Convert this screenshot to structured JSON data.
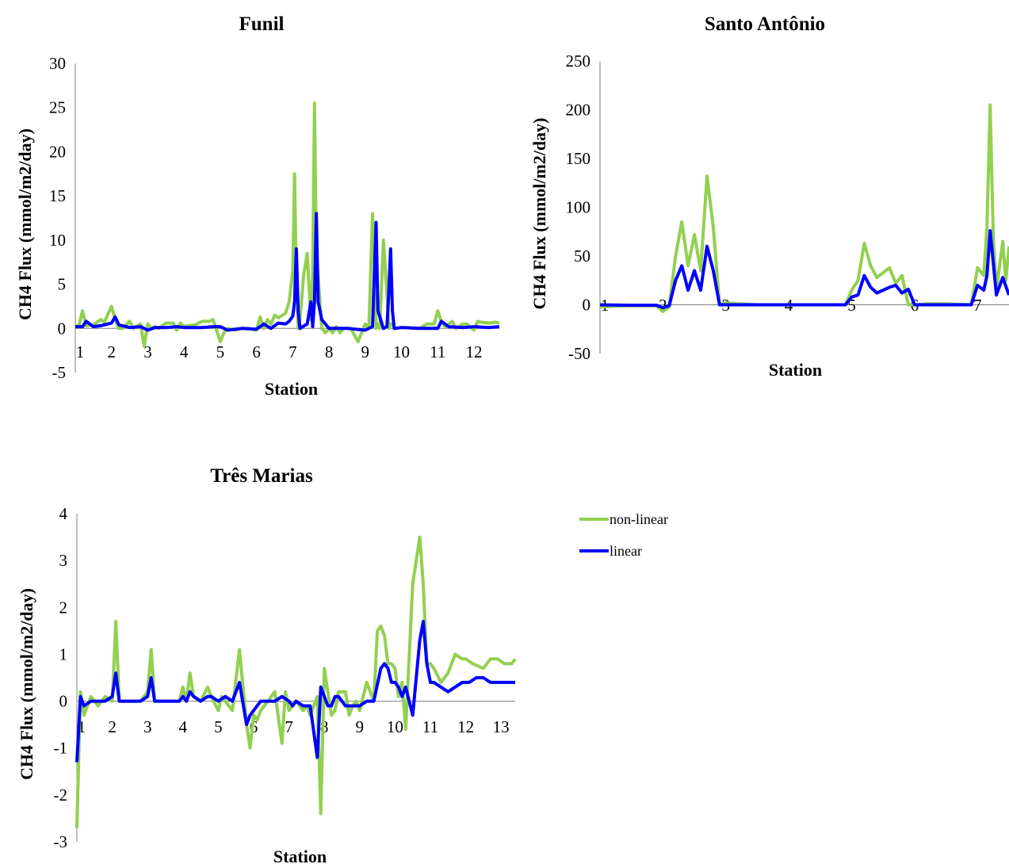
{
  "legend": [
    {
      "label": "non-linear",
      "color": "#92d050"
    },
    {
      "label": "linear",
      "color": "#0000ff"
    }
  ],
  "chart_data": [
    {
      "id": "funil",
      "type": "line",
      "title": "Funil",
      "xlabel": "Station",
      "ylabel": "CH4 Flux (mmol/m2/day)",
      "ylim": [
        -5,
        30
      ],
      "yticks": [
        -5,
        0,
        5,
        10,
        15,
        20,
        25,
        30
      ],
      "xlim": [
        1,
        12.7
      ],
      "xticks": [
        "1",
        "2",
        "3",
        "4",
        "5",
        "6",
        "7",
        "8",
        "9",
        "10",
        "11",
        "12"
      ],
      "series": [
        {
          "name": "non-linear",
          "color": "#92d050",
          "x": [
            1,
            1.1,
            1.2,
            1.3,
            1.5,
            1.7,
            1.8,
            2,
            2.1,
            2.2,
            2.3,
            2.5,
            2.6,
            2.8,
            2.9,
            3,
            3.1,
            3.2,
            3.3,
            3.5,
            3.7,
            3.8,
            3.9,
            4,
            4.1,
            4.3,
            4.5,
            4.7,
            4.8,
            5,
            5.05,
            5.1,
            5.2,
            5.4,
            5.6,
            5.8,
            6,
            6.1,
            6.2,
            6.3,
            6.4,
            6.5,
            6.6,
            6.8,
            6.9,
            7,
            7.05,
            7.1,
            7.15,
            7.2,
            7.3,
            7.4,
            7.5,
            7.55,
            7.6,
            7.65,
            7.7,
            7.8,
            7.9,
            8,
            8.1,
            8.2,
            8.3,
            8.4,
            8.5,
            8.6,
            8.8,
            9,
            9.1,
            9.2,
            9.25,
            9.3,
            9.35,
            9.4,
            9.5,
            9.6,
            9.65,
            9.7,
            9.75,
            9.8,
            9.9,
            10,
            10.1,
            10.2,
            10.3,
            10.5,
            10.7,
            10.9,
            11,
            11.1,
            11.2,
            11.4,
            11.5,
            11.7,
            11.8,
            12,
            12.1,
            12.2,
            12.4,
            12.6,
            12.7
          ],
          "y": [
            0.3,
            0.3,
            2,
            0.3,
            0.4,
            1,
            0.7,
            2.5,
            1,
            0,
            0,
            0.8,
            0,
            0.5,
            -2,
            0.5,
            0,
            0.2,
            0,
            0.6,
            0.6,
            -0.2,
            0.6,
            0.2,
            0.3,
            0.4,
            0.8,
            0.8,
            1,
            -1.5,
            -1,
            -0.5,
            0,
            -0.2,
            0,
            0,
            -0.2,
            1.3,
            0,
            1,
            0.5,
            1.5,
            1.2,
            1.7,
            3,
            6.5,
            17.5,
            5,
            0,
            1,
            6,
            8.5,
            1,
            6,
            25.5,
            8,
            6,
            0,
            -0.5,
            0,
            -0.5,
            0.2,
            -0.5,
            0,
            0,
            0,
            -1.5,
            0.5,
            0,
            13,
            8,
            0,
            0.5,
            0,
            10,
            4,
            0,
            0.5,
            0.5,
            0,
            0,
            0.1,
            0.1,
            0.1,
            0,
            0,
            0.5,
            0.5,
            2,
            0.8,
            0.2,
            0.8,
            0,
            0.5,
            0.5,
            -0.2,
            0.8,
            0.7,
            0.6,
            0.7,
            0.6
          ]
        },
        {
          "name": "linear",
          "color": "#0000ff",
          "x": [
            1,
            1.2,
            1.3,
            1.5,
            1.7,
            1.8,
            2,
            2.1,
            2.2,
            2.5,
            2.8,
            3,
            3.2,
            3.5,
            3.8,
            4,
            4.3,
            4.5,
            4.8,
            5,
            5.2,
            5.6,
            6,
            6.2,
            6.4,
            6.6,
            6.8,
            6.9,
            7,
            7.05,
            7.1,
            7.15,
            7.2,
            7.4,
            7.5,
            7.55,
            7.6,
            7.65,
            7.7,
            7.8,
            8,
            8.5,
            9,
            9.2,
            9.25,
            9.3,
            9.35,
            9.5,
            9.6,
            9.65,
            9.7,
            9.75,
            9.8,
            10,
            10.5,
            11,
            11.1,
            11.3,
            11.7,
            12,
            12.4,
            12.7
          ],
          "y": [
            0.2,
            0.2,
            0.8,
            0.2,
            0.3,
            0.4,
            0.6,
            1.3,
            0.4,
            0.1,
            0.2,
            -0.2,
            0.1,
            0.1,
            0.2,
            0.1,
            0.1,
            0.1,
            0.2,
            0.2,
            -0.2,
            0,
            -0.1,
            0.5,
            0,
            0.6,
            0.5,
            0.8,
            1.4,
            3,
            9,
            2,
            0,
            0.5,
            3,
            0.2,
            3,
            13,
            3,
            1,
            0,
            0,
            -0.2,
            0.2,
            6,
            12,
            2,
            0,
            0.2,
            4,
            9,
            2,
            0,
            0.1,
            0,
            0,
            0.8,
            0.2,
            0.1,
            0.2,
            0.1,
            0.2
          ]
        }
      ]
    },
    {
      "id": "santo",
      "type": "line",
      "title": "Santo Antônio",
      "xlabel": "Station",
      "ylabel": "CH4 Flux (mmol/m2/day)",
      "ylim": [
        -50,
        250
      ],
      "yticks": [
        -50,
        0,
        50,
        100,
        150,
        200,
        250
      ],
      "xlim": [
        1,
        7.5
      ],
      "xticks": [
        "1",
        "2",
        "3",
        "4",
        "5",
        "6",
        "7"
      ],
      "series": [
        {
          "name": "non-linear",
          "color": "#92d050",
          "x": [
            1,
            1.5,
            1.9,
            2,
            2.1,
            2.2,
            2.3,
            2.4,
            2.5,
            2.6,
            2.7,
            2.8,
            2.9,
            3,
            3.2,
            3.5,
            4,
            4.5,
            4.9,
            5,
            5.1,
            5.2,
            5.3,
            5.4,
            5.5,
            5.6,
            5.7,
            5.8,
            5.9,
            6,
            6.2,
            6.5,
            6.9,
            7,
            7.1,
            7.15,
            7.2,
            7.25,
            7.3,
            7.4,
            7.45,
            7.5
          ],
          "y": [
            -2,
            -1,
            -1,
            -7,
            -2,
            50,
            85,
            40,
            72,
            35,
            132,
            80,
            0,
            2,
            1,
            0,
            0,
            0,
            0,
            15,
            25,
            63,
            40,
            28,
            33,
            38,
            22,
            30,
            0,
            0,
            1,
            1,
            0,
            38,
            30,
            80,
            205,
            70,
            15,
            65,
            25,
            60
          ]
        },
        {
          "name": "linear",
          "color": "#0000ff",
          "x": [
            1,
            1.5,
            1.9,
            2,
            2.1,
            2.2,
            2.3,
            2.4,
            2.5,
            2.6,
            2.7,
            2.8,
            2.9,
            3,
            3.5,
            4,
            4.5,
            4.9,
            5,
            5.1,
            5.2,
            5.3,
            5.4,
            5.5,
            5.6,
            5.7,
            5.8,
            5.9,
            6,
            6.5,
            6.9,
            7,
            7.1,
            7.15,
            7.2,
            7.3,
            7.4,
            7.5
          ],
          "y": [
            0,
            -0.5,
            -0.5,
            -3,
            -1,
            25,
            40,
            15,
            35,
            15,
            60,
            35,
            0,
            0,
            0,
            0,
            0,
            0,
            8,
            10,
            30,
            18,
            12,
            15,
            18,
            20,
            12,
            16,
            0,
            0,
            0,
            20,
            15,
            30,
            76,
            10,
            28,
            10
          ]
        }
      ]
    },
    {
      "id": "tres",
      "type": "line",
      "title": "Três Marias",
      "xlabel": "Station",
      "ylabel": "CH4 Flux (mmol/m2/day)",
      "ylim": [
        -3,
        4
      ],
      "yticks": [
        -3,
        -2,
        -1,
        0,
        1,
        2,
        3,
        4
      ],
      "xlim": [
        1,
        13.4
      ],
      "xticks": [
        "1",
        "2",
        "3",
        "4",
        "5",
        "6",
        "7",
        "8",
        "9",
        "10",
        "11",
        "12",
        "13"
      ],
      "series": [
        {
          "name": "non-linear",
          "color": "#92d050",
          "x": [
            1,
            1.1,
            1.2,
            1.4,
            1.6,
            1.8,
            2,
            2.1,
            2.2,
            2.4,
            2.6,
            2.8,
            3,
            3.1,
            3.2,
            3.5,
            3.8,
            3.9,
            4,
            4.1,
            4.2,
            4.3,
            4.5,
            4.7,
            4.8,
            5,
            5.1,
            5.2,
            5.4,
            5.6,
            5.8,
            5.9,
            6,
            6.1,
            6.2,
            6.4,
            6.6,
            6.8,
            6.9,
            7,
            7.1,
            7.2,
            7.4,
            7.5,
            7.6,
            7.8,
            7.9,
            8,
            8.1,
            8.2,
            8.3,
            8.4,
            8.5,
            8.6,
            8.7,
            8.8,
            8.9,
            9,
            9.2,
            9.4,
            9.5,
            9.6,
            9.7,
            9.8,
            9.9,
            10,
            10.1,
            10.2,
            10.3,
            10.5,
            10.7,
            10.8,
            10.9,
            11,
            11.1,
            11.3,
            11.5,
            11.7,
            11.9,
            12,
            12.2,
            12.5,
            12.7,
            12.9,
            13.1,
            13.3,
            13.4
          ],
          "y": [
            -2.7,
            0.2,
            -0.3,
            0.1,
            -0.1,
            0.1,
            0,
            1.7,
            0,
            0,
            0,
            0,
            0.2,
            1.1,
            0,
            0,
            0,
            0,
            0.3,
            0,
            0.6,
            0.1,
            0,
            0.3,
            0.1,
            -0.2,
            0.1,
            0,
            -0.2,
            1.1,
            -0.5,
            -1,
            -0.3,
            -0.4,
            -0.2,
            0,
            0.2,
            -0.9,
            0.2,
            -0.2,
            -0.1,
            0,
            -0.2,
            -0.1,
            -0.3,
            0.1,
            -2.4,
            0.7,
            0.2,
            -0.3,
            -0.2,
            0.2,
            0.2,
            0.2,
            -0.3,
            -0.1,
            0,
            -0.2,
            0.4,
            0,
            1.5,
            1.6,
            1.4,
            0.8,
            0.8,
            0.7,
            0.1,
            0.4,
            -0.6,
            2.5,
            3.5,
            2.5,
            0.8,
            0.8,
            0.7,
            0.4,
            0.6,
            1,
            0.9,
            0.9,
            0.8,
            0.7,
            0.9,
            0.9,
            0.8,
            0.8,
            0.9
          ]
        },
        {
          "name": "linear",
          "color": "#0000ff",
          "x": [
            1,
            1.1,
            1.2,
            1.4,
            1.6,
            1.8,
            2,
            2.1,
            2.2,
            2.5,
            2.8,
            3,
            3.1,
            3.2,
            3.5,
            3.9,
            4,
            4.1,
            4.2,
            4.3,
            4.5,
            4.7,
            4.8,
            5,
            5.2,
            5.4,
            5.6,
            5.8,
            5.9,
            6,
            6.1,
            6.2,
            6.4,
            6.6,
            6.8,
            7,
            7.1,
            7.2,
            7.4,
            7.5,
            7.6,
            7.8,
            7.9,
            8,
            8.1,
            8.2,
            8.3,
            8.4,
            8.6,
            8.8,
            9,
            9.2,
            9.4,
            9.6,
            9.7,
            9.8,
            9.9,
            10,
            10.1,
            10.2,
            10.3,
            10.5,
            10.7,
            10.8,
            10.9,
            11,
            11.1,
            11.3,
            11.5,
            11.7,
            11.9,
            12.1,
            12.3,
            12.5,
            12.7,
            13,
            13.4
          ],
          "y": [
            -1.3,
            0.1,
            -0.1,
            0,
            0,
            0,
            0.1,
            0.6,
            0,
            0,
            0,
            0.1,
            0.5,
            0,
            0,
            0,
            0.1,
            0,
            0.2,
            0.1,
            0,
            0.1,
            0.1,
            0,
            0.1,
            0,
            0.4,
            -0.5,
            -0.3,
            -0.2,
            -0.1,
            0,
            0,
            0,
            0.1,
            0,
            -0.1,
            0,
            -0.1,
            -0.1,
            -0.1,
            -1.2,
            0.3,
            0.1,
            -0.1,
            -0.1,
            0.1,
            0.1,
            -0.1,
            -0.1,
            -0.1,
            0,
            0,
            0.7,
            0.8,
            0.7,
            0.4,
            0.4,
            0.3,
            0.1,
            0.3,
            -0.3,
            1.3,
            1.7,
            0.8,
            0.4,
            0.4,
            0.3,
            0.2,
            0.3,
            0.4,
            0.4,
            0.5,
            0.5,
            0.4,
            0.4,
            0.4
          ]
        }
      ]
    }
  ]
}
